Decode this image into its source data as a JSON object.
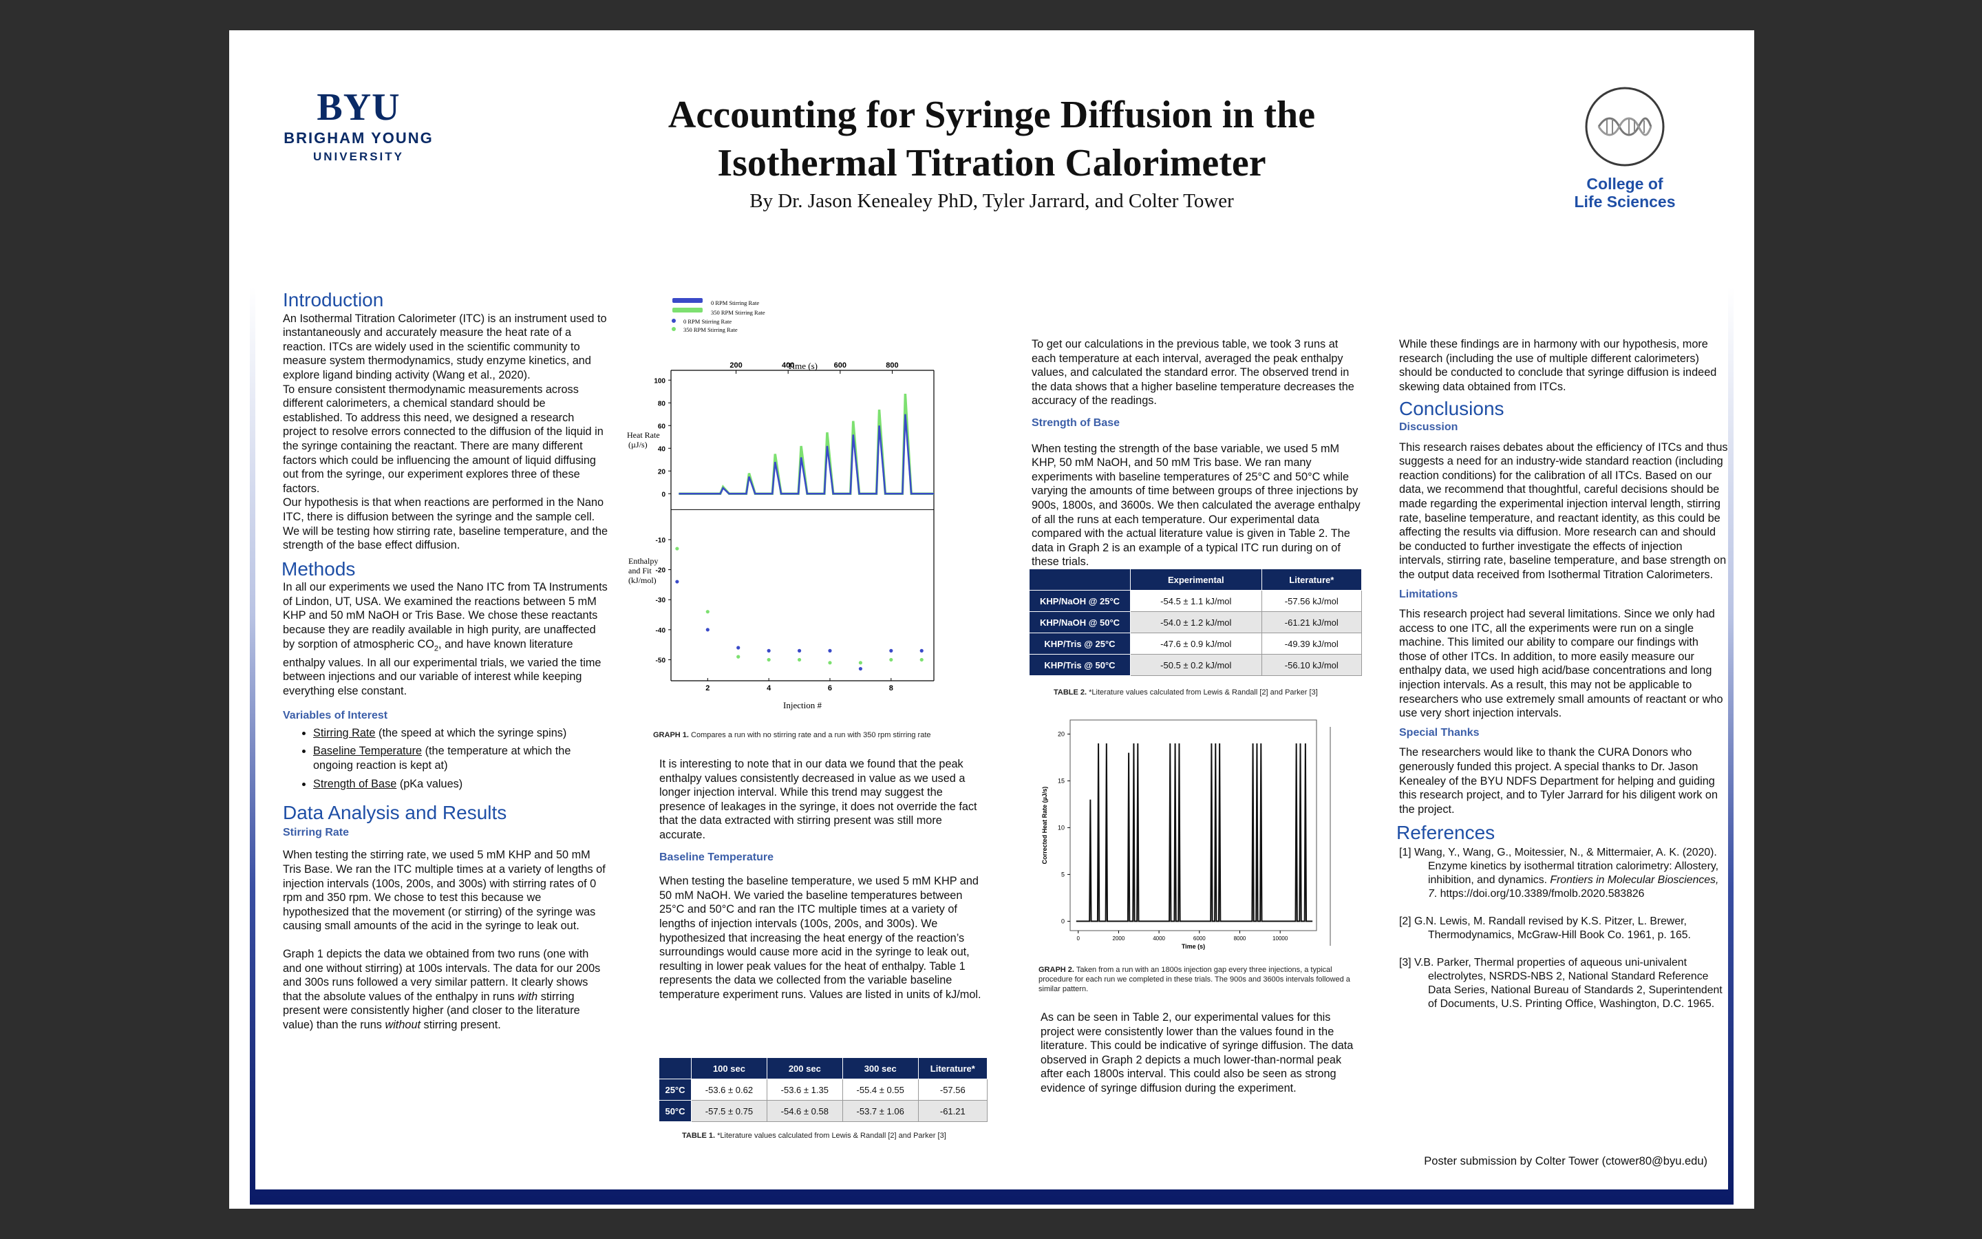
{
  "header": {
    "byu_wordmark": "BYU",
    "byu_name_line1": "BRIGHAM YOUNG",
    "byu_name_line2": "UNIVERSITY",
    "title_line1": "Accounting for Syringe Diffusion in the",
    "title_line2": "Isothermal Titration Calorimeter",
    "authors": "By Dr. Jason Kenealey PhD, Tyler Jarrard, and Colter Tower",
    "college_line1": "College of",
    "college_line2": "Life Sciences"
  },
  "col1": {
    "intro_heading": "Introduction",
    "intro_p1": "An Isothermal Titration Calorimeter (ITC) is an instrument used to instantaneously and accurately measure the heat rate of a reaction. ITCs are widely used in the scientific community to measure system thermodynamics, study enzyme kinetics, and explore ligand binding activity (Wang et al., 2020).",
    "intro_p2": "To ensure consistent thermodynamic measurements across different calorimeters, a chemical standard should be established. To address this need, we designed a research project to resolve errors connected to the diffusion of the liquid in the syringe containing the reactant. There are many different factors which could be influencing the amount of liquid diffusing out from the syringe, our experiment explores three of these factors.",
    "intro_p3": "Our hypothesis is that when reactions are performed in the Nano ITC, there is diffusion between the syringe and the sample cell. We will be testing how stirring rate, baseline temperature, and the strength of the base effect diffusion.",
    "methods_heading": "Methods",
    "methods_p1_a": "In all our experiments we used the Nano ITC from TA Instruments of Lindon, UT, USA. We examined the reactions between 5 mM KHP and 50 mM NaOH or Tris Base. We chose these reactants because they are readily available in high purity, are unaffected by sorption of atmospheric CO",
    "methods_p1_sub": "2",
    "methods_p1_b": ", and have known literature enthalpy values. In all our experimental trials, we varied the time between injections and our variable of interest while keeping everything else constant.",
    "voi_heading": "Variables of Interest",
    "voi_items": [
      {
        "term": "Stirring Rate",
        "desc": " (the speed at which the syringe spins)"
      },
      {
        "term": "Baseline Temperature",
        "desc": " (the temperature at which the ongoing reaction is kept at)"
      },
      {
        "term": "Strength of Base",
        "desc": " (pKa values)"
      }
    ],
    "results_heading": "Data Analysis and Results",
    "stirring_heading": "Stirring Rate",
    "stirring_p1": "When testing the stirring rate, we used 5 mM KHP and 50 mM Tris Base. We ran the ITC multiple times at a variety of lengths of injection intervals (100s, 200s, and 300s) with stirring rates of 0 rpm and 350 rpm. We chose to test this because we hypothesized that the movement (or stirring) of the syringe was causing small amounts of the acid in the syringe to leak out.",
    "stirring_p2_a": "Graph 1 depicts the data we obtained from two runs (one with and one without stirring) at 100s intervals. The data for our 200s and 300s runs followed a very similar pattern. It clearly shows that the absolute values of the enthalpy in runs ",
    "stirring_p2_em1": "with",
    "stirring_p2_b": " stirring present were consistently higher (and closer to the literature value) than the runs ",
    "stirring_p2_em2": "without",
    "stirring_p2_c": " stirring present."
  },
  "col2": {
    "graph1_caption_label": "GRAPH 1.",
    "graph1_caption_text": " Compares a run with no stirring rate and a run with 350 rpm stirring rate",
    "p1": "It is interesting to note that in our data we found that the peak enthalpy values consistently decreased in value as we used a longer injection interval. While this trend may suggest the presence of leakages in the syringe, it does not override the fact that the data extracted with stirring present was still more accurate.",
    "baseline_heading": "Baseline Temperature",
    "baseline_p": "When testing the baseline temperature, we used 5 mM KHP and 50 mM NaOH. We varied the baseline temperatures between 25°C and 50°C and ran the ITC multiple times at a variety of lengths of injection intervals (100s, 200s, and 300s). We hypothesized that increasing the heat energy of the reaction’s surroundings would cause more acid in the syringe to leak out, resulting in lower peak values for the heat of enthalpy. Table 1 represents the data we collected from the variable baseline temperature experiment runs. Values are listed in units of kJ/mol.",
    "table1": {
      "headers": [
        "",
        "100 sec",
        "200 sec",
        "300 sec",
        "Literature*"
      ],
      "rows": [
        [
          "25°C",
          "-53.6 ± 0.62",
          "-53.6 ± 1.35",
          "-55.4 ± 0.55",
          "-57.56"
        ],
        [
          "50°C",
          "-57.5 ± 0.75",
          "-54.6 ± 0.58",
          "-53.7 ± 1.06",
          "-61.21"
        ]
      ]
    },
    "table1_caption_label": "TABLE 1.",
    "table1_caption_text": " *Literature values calculated from Lewis & Randall [2] and Parker [3]"
  },
  "col3": {
    "p1": "To get our calculations in the previous table, we took 3 runs at each temperature at each interval, averaged the peak enthalpy values, and calculated the standard error. The observed trend in the data shows that a higher baseline temperature decreases the accuracy of the readings.",
    "strength_heading": "Strength of Base",
    "strength_p": "When testing the strength of the base variable, we used 5 mM KHP, 50 mM NaOH, and 50 mM Tris base. We ran many experiments with baseline temperatures of 25°C and 50°C while varying the amounts of time between groups of three injections by 900s, 1800s, and 3600s. We then calculated the average enthalpy of all the runs at each temperature. Our experimental data compared with the actual literature value is given in Table 2. The data in Graph 2 is an example of a typical ITC run during on of these trials.",
    "table2": {
      "headers": [
        "",
        "Experimental",
        "Literature*"
      ],
      "rows": [
        [
          "KHP/NaOH @ 25°C",
          "-54.5 ± 1.1 kJ/mol",
          "-57.56 kJ/mol"
        ],
        [
          "KHP/NaOH @ 50°C",
          "-54.0 ± 1.2 kJ/mol",
          "-61.21 kJ/mol"
        ],
        [
          "KHP/Tris @ 25°C",
          "-47.6 ± 0.9 kJ/mol",
          "-49.39 kJ/mol"
        ],
        [
          "KHP/Tris @ 50°C",
          "-50.5 ± 0.2 kJ/mol",
          "-56.10 kJ/mol"
        ]
      ]
    },
    "table2_caption_label": "TABLE 2.",
    "table2_caption_text": " *Literature values calculated from Lewis & Randall [2] and Parker [3]",
    "graph2_caption_label": "GRAPH 2.",
    "graph2_caption_text": " Taken from a run with an 1800s injection gap every three injections, a typical procedure for each run we completed in these trials. The 900s and 3600s intervals followed a similar pattern.",
    "p2": "As can be seen in Table 2, our experimental values for this project were consistently lower than the values found in the literature. This could be indicative of syringe diffusion. The data observed in Graph 2 depicts a much lower-than-normal peak after each 1800s interval. This could also be seen as strong evidence of syringe diffusion during the experiment."
  },
  "col4": {
    "p1": "While these findings are in harmony with our hypothesis, more research (including the use of multiple different calorimeters) should be conducted to conclude that syringe diffusion is indeed skewing data obtained from ITCs.",
    "conclusions_heading": "Conclusions",
    "discussion_heading": "Discussion",
    "discussion_p": "This research raises debates about the efficiency of ITCs and thus suggests a need for an industry-wide standard reaction (including reaction conditions) for the calibration of all ITCs. Based on our data, we recommend that thoughtful, careful decisions should be made regarding the experimental injection interval length, stirring rate, baseline temperature, and reactant identity, as this could be affecting the results via diffusion. More research can and should be conducted to further investigate the effects of injection intervals, stirring rate, baseline temperature, and base strength on the output data received from Isothermal Titration Calorimeters.",
    "limitations_heading": "Limitations",
    "limitations_p": "This research project had several limitations. Since we only had access to one ITC, all the experiments were run on a single machine. This limited our ability to compare our findings with those of other ITCs. In addition, to more easily measure our enthalpy data, we used high acid/base concentrations and long injection intervals. As a result, this may not be applicable to researchers who use extremely small amounts of reactant or who use very short injection intervals.",
    "thanks_heading": "Special Thanks",
    "thanks_p": "The researchers would like to thank the CURA Donors who generously funded this project. A special thanks to Dr. Jason Kenealey of the BYU NDFS Department for helping and guiding this research project, and to Tyler Jarrard for his diligent work on the project.",
    "references_heading": "References",
    "ref1_a": "[1] Wang, Y., Wang, G., Moitessier, N., & Mittermaier, A. K. (2020). Enzyme kinetics by isothermal titration calorimetry: Allostery, inhibition, and dynamics. ",
    "ref1_em": "Frontiers in Molecular Biosciences, 7",
    "ref1_b": ". https://doi.org/10.3389/fmolb.2020.583826",
    "ref2": "[2] G.N. Lewis, M. Randall revised by K.S. Pitzer, L. Brewer, Thermodynamics, McGraw-Hill Book Co. 1961, p. 165.",
    "ref3": "[3] V.B. Parker, Thermal properties of aqueous uni-univalent electrolytes, NSRDS-NBS 2, National Standard Reference Data Series, National Bureau of Standards 2, Superintendent of Documents, U.S. Printing Office, Washington, D.C. 1965.",
    "submission": "Poster submission by Colter Tower (ctower80@byu.edu)"
  },
  "chart_data": [
    {
      "type": "line",
      "id": "graph1",
      "legend": [
        "0 RPM Stirring Rate",
        "350 RPM Stirring Rate",
        "0 RPM Stirring Rate",
        "350 RPM Stirring Rate"
      ],
      "colors": {
        "rpm0": "#3a4ac8",
        "rpm350": "#7de070"
      },
      "top_panel": {
        "xlabel": "Time (s)",
        "ylabel": "Heat Rate (µJ/s)",
        "xticks": [
          200,
          400,
          600,
          800
        ],
        "xlim": [
          -50,
          960
        ],
        "yticks": [
          100,
          80,
          60,
          40,
          20,
          0
        ],
        "ylim": [
          -15,
          105
        ],
        "series": [
          {
            "name": "0 RPM Stirring Rate",
            "peak_times": [
              150,
              250,
              350,
              450,
              550,
              650,
              750,
              850
            ],
            "peak_heights": [
              5,
              15,
              28,
              32,
              42,
              52,
              60,
              70
            ]
          },
          {
            "name": "350 RPM Stirring Rate",
            "peak_times": [
              150,
              250,
              350,
              450,
              550,
              650,
              750,
              850
            ],
            "peak_heights": [
              6,
              18,
              35,
              42,
              54,
              64,
              74,
              88
            ]
          }
        ]
      },
      "bottom_panel": {
        "xlabel": "Injection #",
        "ylabel": "Enthalpy and Fit (kJ/mol)",
        "xticks": [
          2,
          4,
          6,
          8
        ],
        "xlim": [
          0.8,
          9.4
        ],
        "yticks": [
          -10,
          -20,
          -30,
          -40,
          -50
        ],
        "ylim": [
          -57,
          0
        ],
        "series": [
          {
            "name": "0 RPM Stirring Rate",
            "x": [
              1,
              2,
              3,
              4,
              5,
              6,
              7,
              8,
              9
            ],
            "y": [
              -24,
              -40,
              -46,
              -47,
              -47,
              -47,
              -53,
              -47,
              -47
            ]
          },
          {
            "name": "350 RPM Stirring Rate",
            "x": [
              1,
              2,
              3,
              4,
              5,
              6,
              7,
              8,
              9
            ],
            "y": [
              -13,
              -34,
              -49,
              -50,
              -50,
              -51,
              -51,
              -50,
              -50
            ]
          }
        ]
      }
    },
    {
      "type": "line",
      "id": "graph2",
      "xlabel": "Time (s)",
      "ylabel": "Corrected Heat Rate (µJ/s)",
      "xticks": [
        0,
        2000,
        4000,
        6000,
        8000,
        10000
      ],
      "xlim": [
        -400,
        11800
      ],
      "yticks": [
        0,
        5,
        10,
        15,
        20
      ],
      "ylim": [
        -1,
        21.5
      ],
      "color": "#111111",
      "groups": [
        {
          "peak_times": [
            600,
            1000,
            1400
          ],
          "peak_heights": [
            13,
            19,
            19
          ]
        },
        {
          "peak_times": [
            2500,
            2750,
            2950
          ],
          "peak_heights": [
            18,
            19,
            19
          ]
        },
        {
          "peak_times": [
            4550,
            4800,
            5000
          ],
          "peak_heights": [
            19,
            19,
            19
          ]
        },
        {
          "peak_times": [
            6600,
            6800,
            7000
          ],
          "peak_heights": [
            19,
            19,
            19
          ]
        },
        {
          "peak_times": [
            8650,
            8850,
            9050
          ],
          "peak_heights": [
            19,
            19,
            19
          ]
        },
        {
          "peak_times": [
            10800,
            11000,
            11250
          ],
          "peak_heights": [
            19,
            19,
            19
          ]
        }
      ]
    }
  ]
}
